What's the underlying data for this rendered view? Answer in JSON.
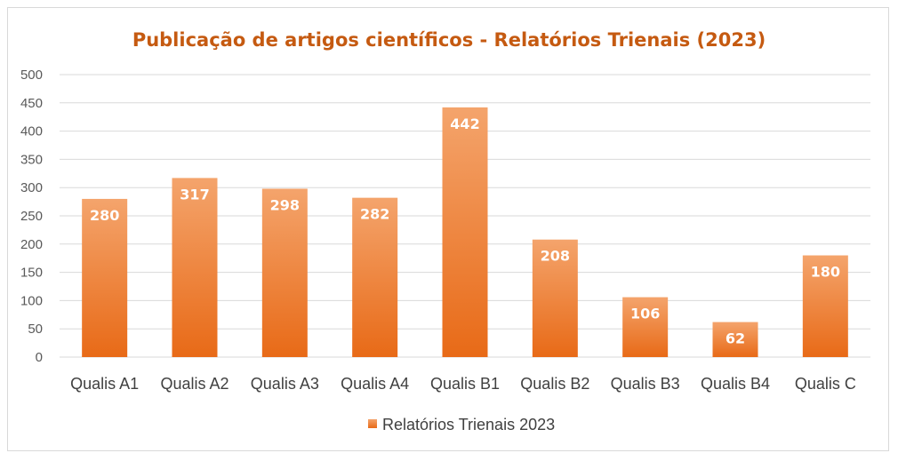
{
  "chart_data": {
    "type": "bar",
    "title": "Publicação de artigos científicos - Relatórios Trienais (2023)",
    "categories": [
      "Qualis A1",
      "Qualis A2",
      "Qualis A3",
      "Qualis A4",
      "Qualis B1",
      "Qualis B2",
      "Qualis B3",
      "Qualis B4",
      "Qualis C"
    ],
    "series": [
      {
        "name": "Relatórios Trienais 2023",
        "values": [
          280,
          317,
          298,
          282,
          442,
          208,
          106,
          62,
          180
        ]
      }
    ],
    "data_labels": [
      "280",
      "317",
      "298",
      "282",
      "442",
      "208",
      "106",
      "62",
      "180"
    ],
    "ylim": [
      0,
      500
    ],
    "yticks": [
      0,
      50,
      100,
      150,
      200,
      250,
      300,
      350,
      400,
      450,
      500
    ],
    "ytick_labels": [
      "0",
      "50",
      "100",
      "150",
      "200",
      "250",
      "300",
      "350",
      "400",
      "450",
      "500"
    ],
    "grid": true,
    "legend_position": "bottom",
    "colors": {
      "bar_top": "#f4a46c",
      "bar_bottom": "#e86a17",
      "title": "#c55a11",
      "gridline": "#d9d9d9"
    }
  }
}
